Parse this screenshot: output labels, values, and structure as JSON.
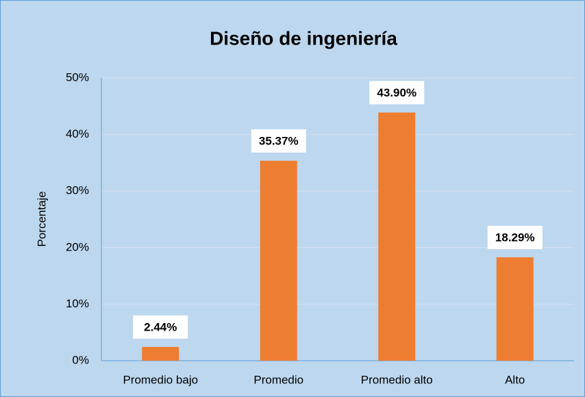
{
  "chart_data": {
    "type": "bar",
    "title": "Diseño de ingeniería",
    "y_label": "Porcentaje",
    "categories": [
      "Promedio bajo",
      "Promedio",
      "Promedio alto",
      "Alto"
    ],
    "values": [
      2.44,
      35.37,
      43.9,
      18.29
    ],
    "value_labels": [
      "2.44%",
      "35.37%",
      "43.90%",
      "18.29%"
    ],
    "color": "#ed7d31",
    "ylim": [
      0,
      50
    ],
    "yticks": [
      {
        "value": 0,
        "label": "0%"
      },
      {
        "value": 10,
        "label": "10%"
      },
      {
        "value": 20,
        "label": "20%"
      },
      {
        "value": 30,
        "label": "30%"
      },
      {
        "value": 40,
        "label": "40%"
      },
      {
        "value": 50,
        "label": "50%"
      }
    ],
    "grid": true
  }
}
